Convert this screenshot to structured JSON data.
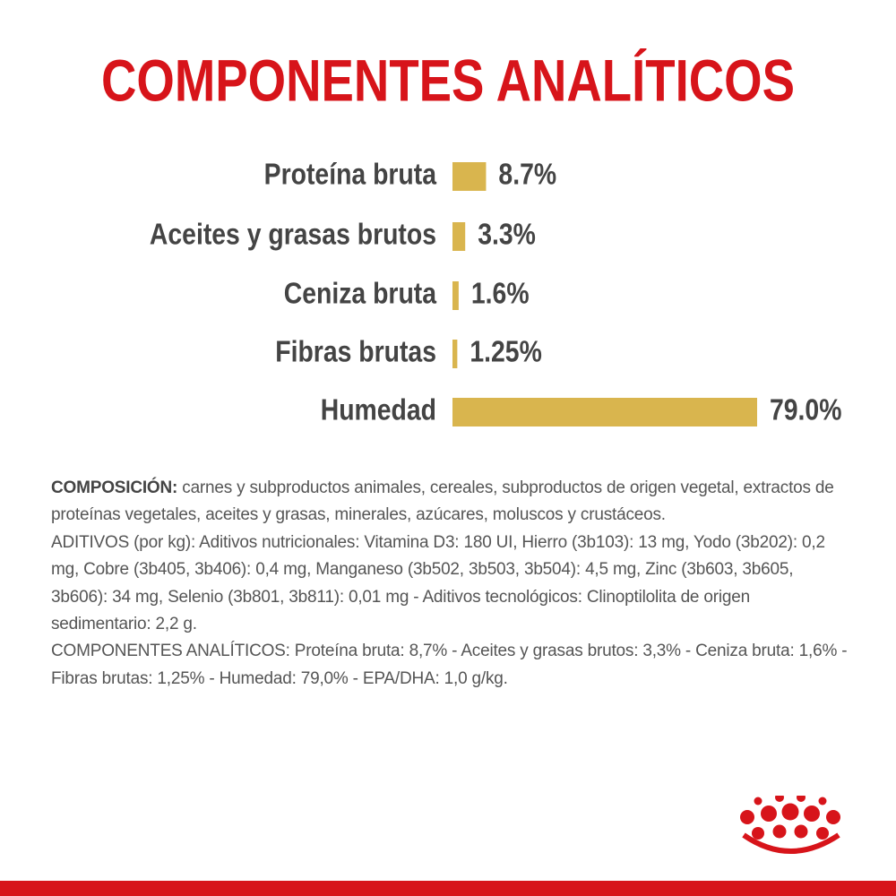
{
  "chart_data": {
    "type": "bar",
    "orientation": "horizontal",
    "title": "COMPONENTES ANALÍTICOS",
    "categories": [
      "Proteína bruta",
      "Aceites y grasas brutos",
      "Ceniza bruta",
      "Fibras brutas",
      "Humedad"
    ],
    "values": [
      8.7,
      3.3,
      1.6,
      1.25,
      79.0
    ],
    "value_labels": [
      "8.7%",
      "3.3%",
      "1.6%",
      "1.25%",
      "79.0%"
    ],
    "color": "#d9b54e"
  },
  "composition": {
    "label": "COMPOSICIÓN:",
    "text": "carnes y subproductos animales, cereales, subproductos de origen vegetal, extractos de proteínas vegetales, aceites y grasas, minerales, azúcares, moluscos y crustáceos.",
    "aditivos": "ADITIVOS (por kg): Aditivos nutricionales: Vitamina D3: 180 UI, Hierro (3b103): 13 mg, Yodo (3b202): 0,2 mg, Cobre (3b405, 3b406): 0,4 mg, Manganeso (3b502, 3b503, 3b504): 4,5 mg, Zinc (3b603, 3b605, 3b606): 34 mg, Selenio (3b801, 3b811): 0,01 mg - Aditivos tecnológicos: Clinoptilolita de origen sedimentario: 2,2 g.",
    "analiticos": "COMPONENTES ANALÍTICOS: Proteína bruta: 8,7% - Aceites y grasas brutos: 3,3% - Ceniza bruta: 1,6% - Fibras brutas: 1,25% - Humedad: 79,0% - EPA/DHA: 1,0 g/kg."
  }
}
